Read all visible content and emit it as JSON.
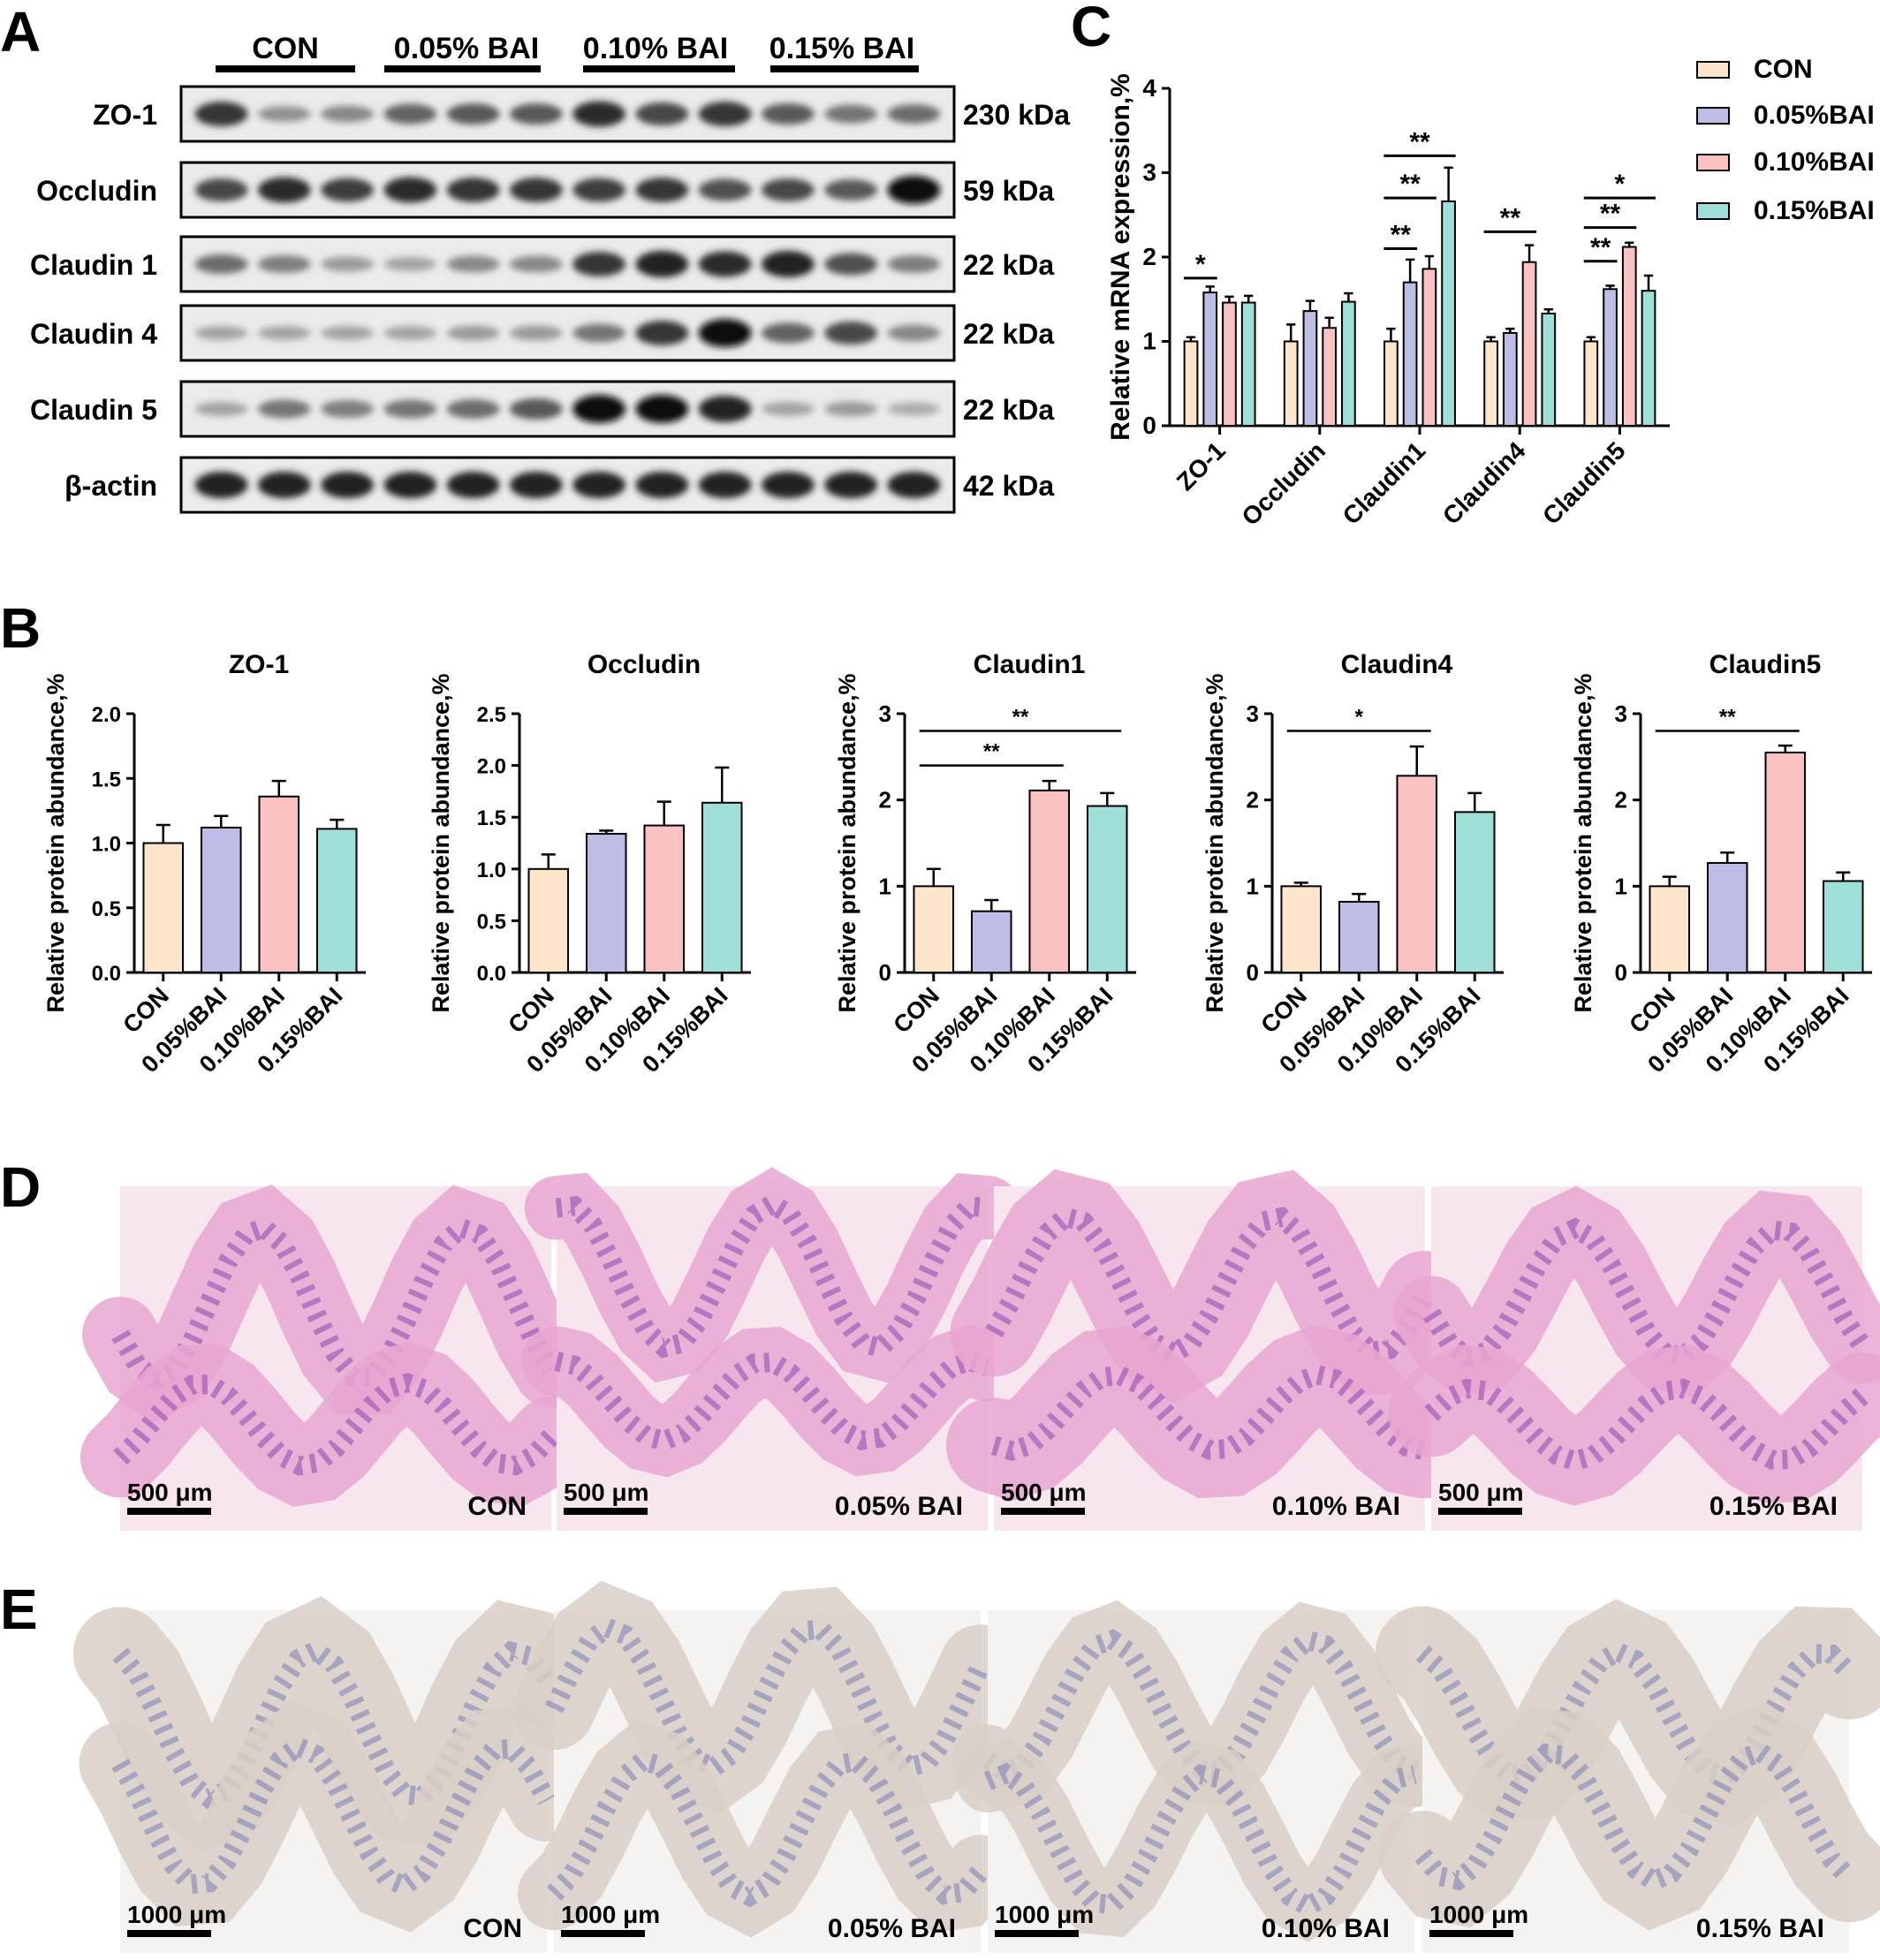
{
  "panel_labels": [
    "A",
    "B",
    "C",
    "D",
    "E"
  ],
  "western_blot": {
    "groups": [
      "CON",
      "0.05% BAI",
      "0.10% BAI",
      "0.15% BAI"
    ],
    "rows": [
      {
        "protein": "ZO-1",
        "size": "230 kDa"
      },
      {
        "protein": "Occludin",
        "size": "59 kDa"
      },
      {
        "protein": "Claudin 1",
        "size": "22 kDa"
      },
      {
        "protein": "Claudin 4",
        "size": "22 kDa"
      },
      {
        "protein": "Claudin 5",
        "size": "22 kDa"
      },
      {
        "protein": "β-actin",
        "size": "42 kDa"
      }
    ],
    "band_intensity": [
      [
        0.8,
        0.3,
        0.35,
        0.55,
        0.6,
        0.6,
        0.85,
        0.7,
        0.8,
        0.6,
        0.45,
        0.5
      ],
      [
        0.7,
        0.85,
        0.75,
        0.85,
        0.8,
        0.8,
        0.75,
        0.8,
        0.65,
        0.7,
        0.6,
        1.0
      ],
      [
        0.5,
        0.4,
        0.25,
        0.2,
        0.35,
        0.35,
        0.8,
        0.9,
        0.85,
        0.9,
        0.65,
        0.4
      ],
      [
        0.2,
        0.2,
        0.2,
        0.2,
        0.25,
        0.25,
        0.45,
        0.8,
        1.0,
        0.55,
        0.7,
        0.35
      ],
      [
        0.2,
        0.45,
        0.4,
        0.45,
        0.5,
        0.6,
        1.0,
        1.0,
        0.9,
        0.2,
        0.25,
        0.15
      ],
      [
        0.9,
        0.9,
        0.9,
        0.9,
        0.9,
        0.9,
        0.9,
        0.9,
        0.9,
        0.9,
        0.9,
        0.9
      ]
    ]
  },
  "colors": {
    "CON": "#FDE5CC",
    "0.05%BAI": "#BDBDE6",
    "0.10%BAI": "#F9C1C1",
    "0.15%BAI": "#9EE0D8"
  },
  "chart_data": [
    {
      "type": "bar",
      "id": "C",
      "title": "",
      "ylabel": "Relative mRNA expression,%",
      "xlabel": "",
      "ylim": [
        0,
        4
      ],
      "yticks": [
        0,
        1,
        2,
        3,
        4
      ],
      "categories": [
        "ZO-1",
        "Occludin",
        "Claudin1",
        "Claudin4",
        "Claudin5"
      ],
      "series": [
        {
          "name": "CON",
          "values": [
            1.0,
            1.0,
            1.0,
            1.0,
            1.0
          ],
          "errors": [
            0.05,
            0.2,
            0.15,
            0.05,
            0.05
          ]
        },
        {
          "name": "0.05%BAI",
          "values": [
            1.58,
            1.36,
            1.7,
            1.1,
            1.62
          ],
          "errors": [
            0.07,
            0.12,
            0.27,
            0.05,
            0.04
          ]
        },
        {
          "name": "0.10%BAI",
          "values": [
            1.46,
            1.16,
            1.86,
            1.94,
            2.12
          ],
          "errors": [
            0.07,
            0.12,
            0.15,
            0.2,
            0.05
          ]
        },
        {
          "name": "0.15%BAI",
          "values": [
            1.46,
            1.47,
            2.66,
            1.33,
            1.6
          ],
          "errors": [
            0.08,
            0.1,
            0.4,
            0.05,
            0.18
          ]
        }
      ],
      "legend_position": "top-right",
      "significance": [
        {
          "category": 0,
          "from": 0,
          "to": 1,
          "label": "*",
          "y": 1.75
        },
        {
          "category": 2,
          "from": 0,
          "to": 1,
          "label": "**",
          "y": 2.1
        },
        {
          "category": 2,
          "from": 0,
          "to": 2,
          "label": "**",
          "y": 2.7
        },
        {
          "category": 2,
          "from": 0,
          "to": 3,
          "label": "**",
          "y": 3.2
        },
        {
          "category": 3,
          "from": 0,
          "to": 2,
          "label": "**",
          "y": 2.3
        },
        {
          "category": 4,
          "from": 0,
          "to": 1,
          "label": "**",
          "y": 1.95
        },
        {
          "category": 4,
          "from": 0,
          "to": 2,
          "label": "**",
          "y": 2.35
        },
        {
          "category": 4,
          "from": 0,
          "to": 3,
          "label": "*",
          "y": 2.7
        }
      ]
    },
    {
      "type": "bar",
      "id": "B1",
      "title": "ZO-1",
      "ylabel": "Relative protein abundance,%",
      "xlabel": "",
      "ylim": [
        0,
        2.0
      ],
      "yticks": [
        0.0,
        0.5,
        1.0,
        1.5,
        2.0
      ],
      "tick_decimals": 1,
      "categories": [
        "CON",
        "0.05%BAI",
        "0.10%BAI",
        "0.15%BAI"
      ],
      "values": [
        1.0,
        1.12,
        1.36,
        1.11
      ],
      "errors": [
        0.14,
        0.09,
        0.12,
        0.07
      ],
      "significance": []
    },
    {
      "type": "bar",
      "id": "B2",
      "title": "Occludin",
      "ylabel": "Relative protein abundance,%",
      "xlabel": "",
      "ylim": [
        0,
        2.5
      ],
      "yticks": [
        0.0,
        0.5,
        1.0,
        1.5,
        2.0,
        2.5
      ],
      "tick_decimals": 1,
      "categories": [
        "CON",
        "0.05%BAI",
        "0.10%BAI",
        "0.15%BAI"
      ],
      "values": [
        1.0,
        1.34,
        1.42,
        1.64
      ],
      "errors": [
        0.14,
        0.03,
        0.23,
        0.34
      ],
      "significance": []
    },
    {
      "type": "bar",
      "id": "B3",
      "title": "Claudin1",
      "ylabel": "Relative protein abundance,%",
      "xlabel": "",
      "ylim": [
        0,
        3
      ],
      "yticks": [
        0,
        1,
        2,
        3
      ],
      "tick_decimals": 0,
      "categories": [
        "CON",
        "0.05%BAI",
        "0.10%BAI",
        "0.15%BAI"
      ],
      "values": [
        1.0,
        0.71,
        2.11,
        1.93
      ],
      "errors": [
        0.2,
        0.13,
        0.11,
        0.15
      ],
      "significance": [
        {
          "from": 0,
          "to": 2,
          "label": "**",
          "y": 2.4
        },
        {
          "from": 0,
          "to": 3,
          "label": "**",
          "y": 2.8
        }
      ]
    },
    {
      "type": "bar",
      "id": "B4",
      "title": "Claudin4",
      "ylabel": "Relative protein abundance,%",
      "xlabel": "",
      "ylim": [
        0,
        3
      ],
      "yticks": [
        0,
        1,
        2,
        3
      ],
      "tick_decimals": 0,
      "categories": [
        "CON",
        "0.05%BAI",
        "0.10%BAI",
        "0.15%BAI"
      ],
      "values": [
        1.0,
        0.82,
        2.28,
        1.86
      ],
      "errors": [
        0.04,
        0.09,
        0.34,
        0.22
      ],
      "significance": [
        {
          "from": 0,
          "to": 2,
          "label": "*",
          "y": 2.8
        }
      ]
    },
    {
      "type": "bar",
      "id": "B5",
      "title": "Claudin5",
      "ylabel": "Relative protein abundance,%",
      "xlabel": "",
      "ylim": [
        0,
        3
      ],
      "yticks": [
        0,
        1,
        2,
        3
      ],
      "tick_decimals": 0,
      "categories": [
        "CON",
        "0.05%BAI",
        "0.10%BAI",
        "0.15%BAI"
      ],
      "values": [
        1.0,
        1.27,
        2.55,
        1.06
      ],
      "errors": [
        0.11,
        0.12,
        0.08,
        0.1
      ],
      "significance": [
        {
          "from": 0,
          "to": 2,
          "label": "**",
          "y": 2.8
        }
      ]
    }
  ],
  "histology": {
    "D": {
      "labels": [
        "CON",
        "0.05% BAI",
        "0.10% BAI",
        "0.15% BAI"
      ],
      "scale_bar": "500 μm"
    },
    "E": {
      "labels": [
        "CON",
        "0.05% BAI",
        "0.10% BAI",
        "0.15% BAI"
      ],
      "scale_bar": "1000 μm"
    }
  }
}
